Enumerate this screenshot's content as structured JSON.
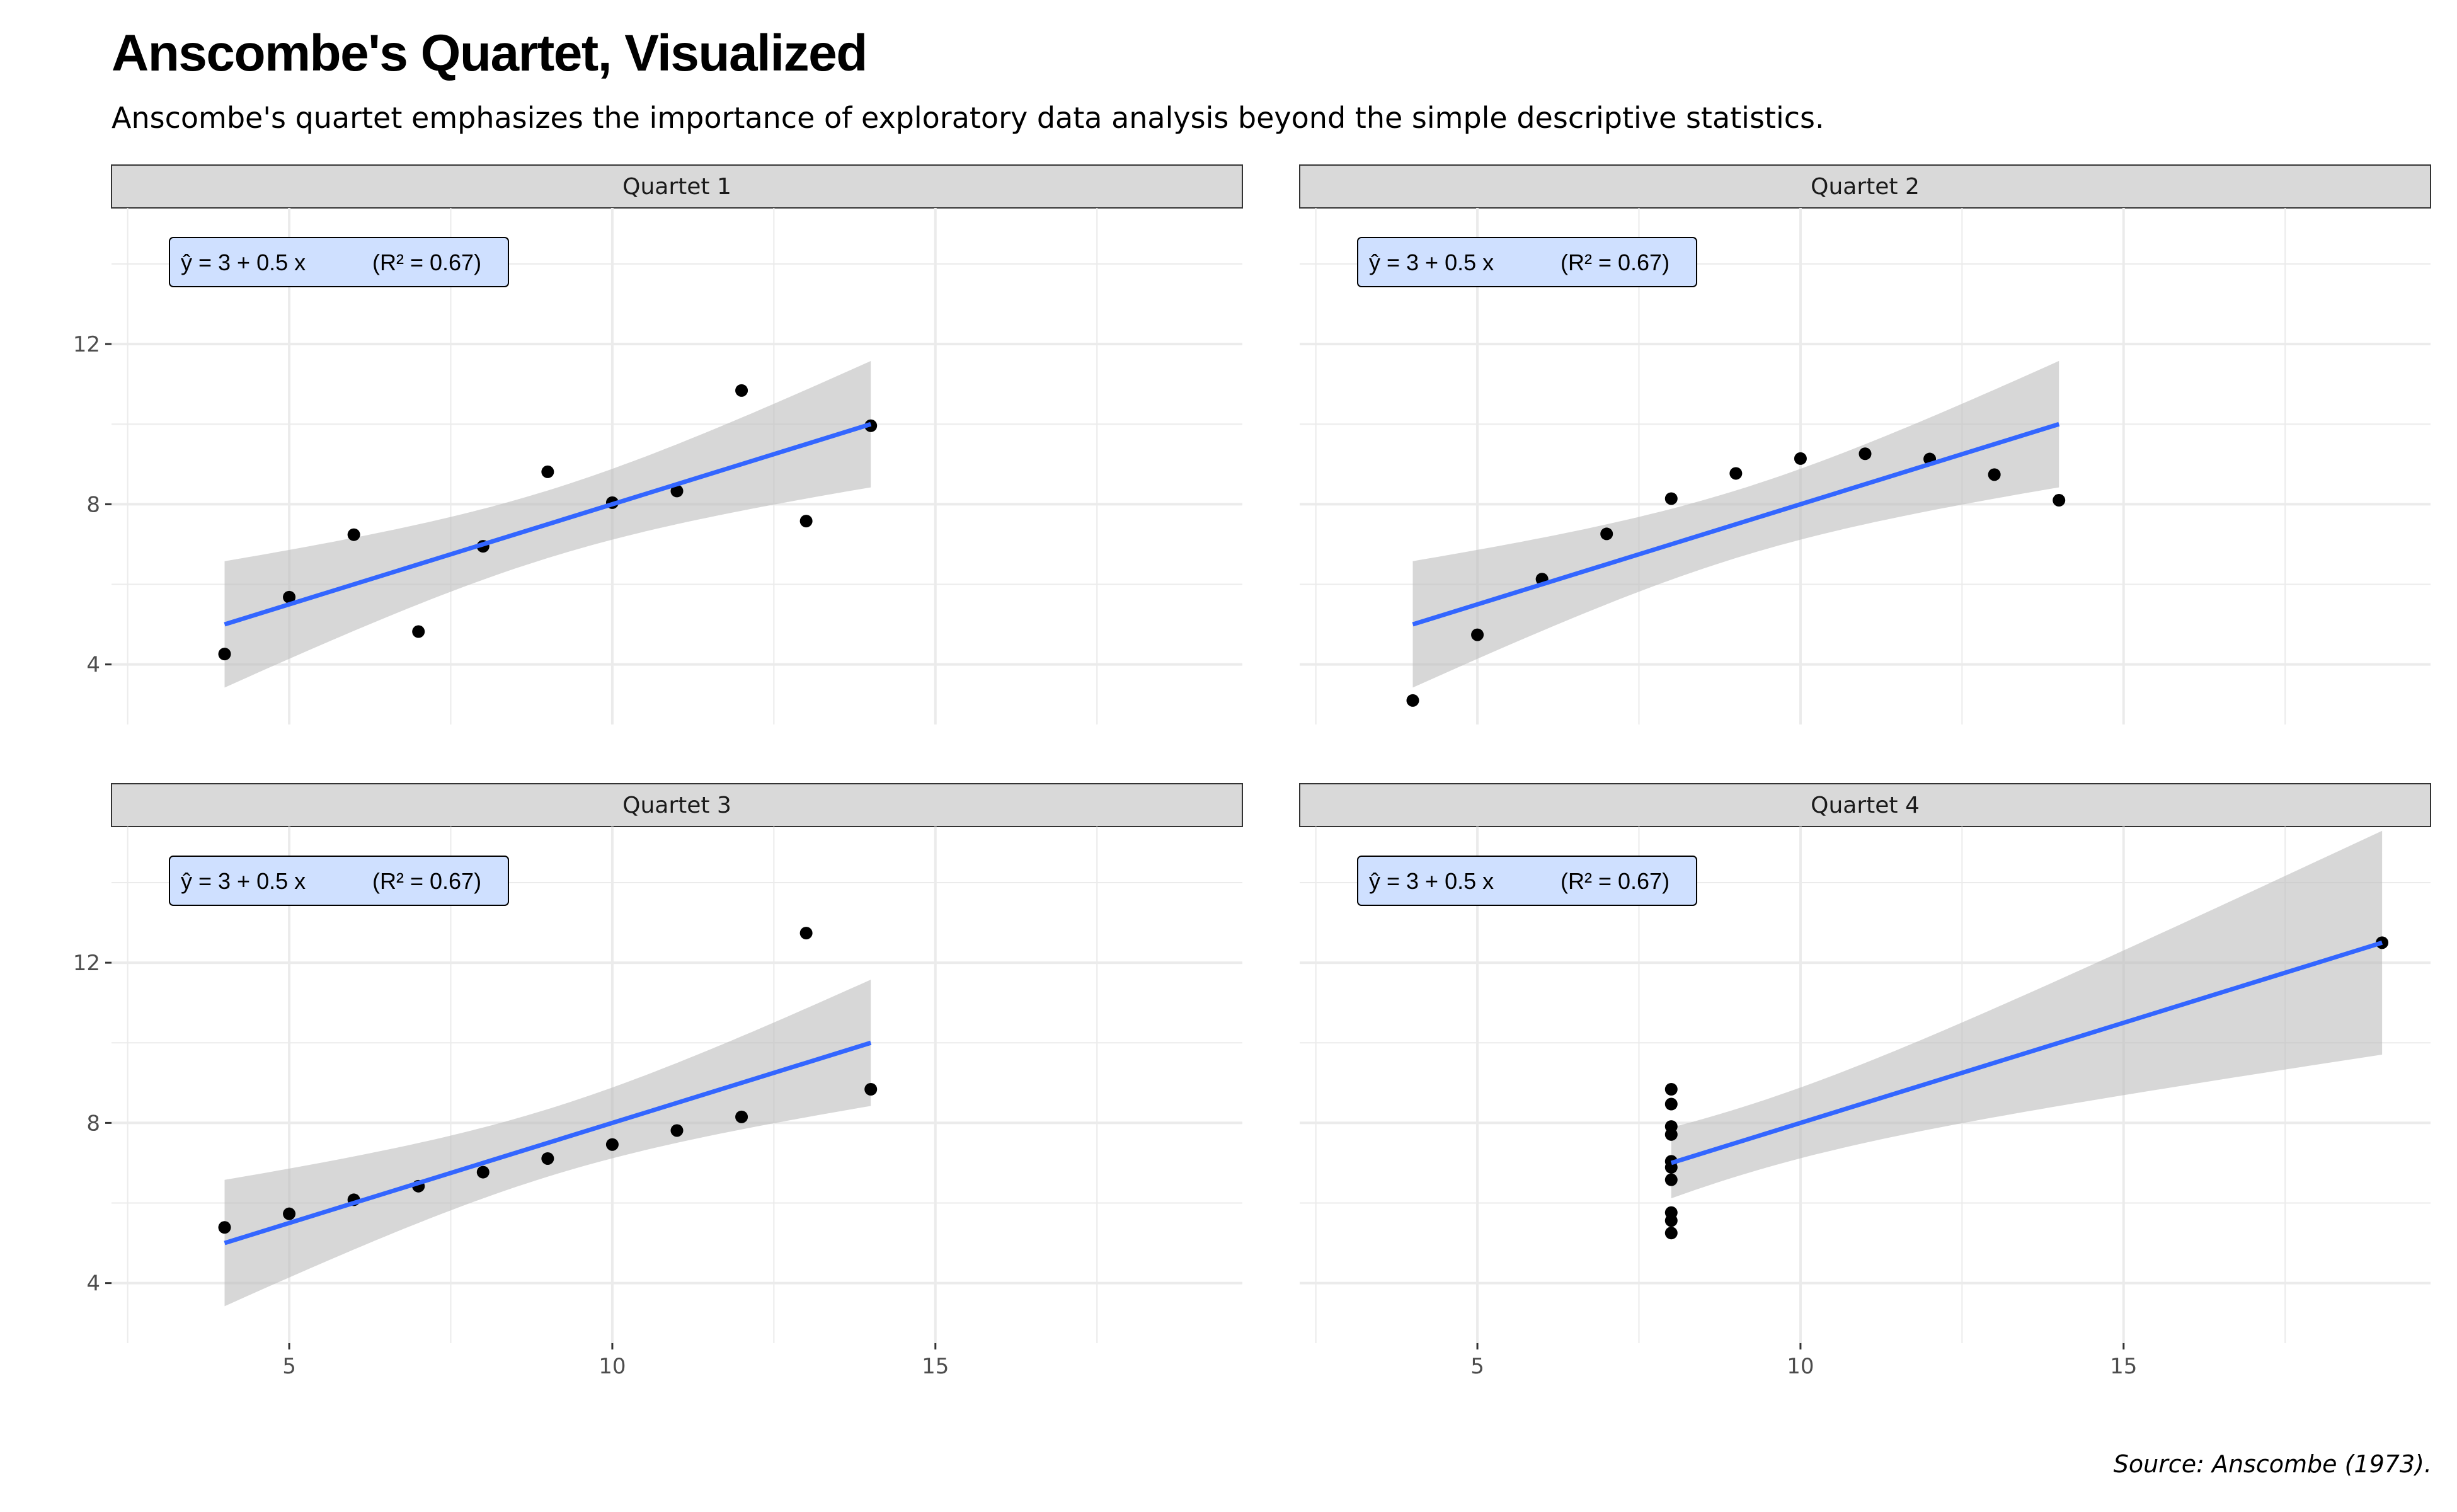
{
  "title": "Anscombe's Quartet, Visualized",
  "subtitle": "Anscombe's quartet emphasizes the importance of exploratory data analysis beyond the simple descriptive statistics.",
  "caption": "Source: Anscombe (1973).",
  "colors": {
    "background": "#ffffff",
    "grid": "#ebebeb",
    "strip_fill": "#d9d9d9",
    "strip_border": "#333333",
    "point": "#000000",
    "fit_line": "#3366ff",
    "confidence_band": "#bebebe",
    "label_fill": "#cfe0ff",
    "label_border": "#000000"
  },
  "chart_data": {
    "type": "scatter",
    "facets": "2x2",
    "x_ticks": [
      5,
      10,
      15
    ],
    "y_ticks": [
      4,
      8,
      12
    ],
    "xlim": [
      2.25,
      19.75
    ],
    "ylim": [
      2.5,
      15.4
    ],
    "grid": true,
    "shared_axes": true,
    "fit": "linear regression with confidence band",
    "panels": [
      {
        "name": "Quartet 1",
        "annotation": {
          "equation": "ŷ = 3 + 0.5 x",
          "r2": "(R² = 0.67)"
        },
        "x": [
          10,
          8,
          13,
          9,
          11,
          14,
          6,
          4,
          12,
          7,
          5
        ],
        "y": [
          8.04,
          6.95,
          7.58,
          8.81,
          8.33,
          9.96,
          7.24,
          4.26,
          10.84,
          4.82,
          5.68
        ],
        "fit": {
          "intercept": 3.0,
          "slope": 0.5,
          "x_range": [
            4,
            14
          ]
        }
      },
      {
        "name": "Quartet 2",
        "annotation": {
          "equation": "ŷ = 3 + 0.5 x",
          "r2": "(R² = 0.67)"
        },
        "x": [
          10,
          8,
          13,
          9,
          11,
          14,
          6,
          4,
          12,
          7,
          5
        ],
        "y": [
          9.14,
          8.14,
          8.74,
          8.77,
          9.26,
          8.1,
          6.13,
          3.1,
          9.13,
          7.26,
          4.74
        ],
        "fit": {
          "intercept": 3.0,
          "slope": 0.5,
          "x_range": [
            4,
            14
          ]
        }
      },
      {
        "name": "Quartet 3",
        "annotation": {
          "equation": "ŷ = 3 + 0.5 x",
          "r2": "(R² = 0.67)"
        },
        "x": [
          10,
          8,
          13,
          9,
          11,
          14,
          6,
          4,
          12,
          7,
          5
        ],
        "y": [
          7.46,
          6.77,
          12.74,
          7.11,
          7.81,
          8.84,
          6.08,
          5.39,
          8.15,
          6.42,
          5.73
        ],
        "fit": {
          "intercept": 3.0,
          "slope": 0.5,
          "x_range": [
            4,
            14
          ]
        }
      },
      {
        "name": "Quartet 4",
        "annotation": {
          "equation": "ŷ = 3 + 0.5 x",
          "r2": "(R² = 0.67)"
        },
        "x": [
          8,
          8,
          8,
          8,
          8,
          8,
          8,
          19,
          8,
          8,
          8
        ],
        "y": [
          6.58,
          5.76,
          7.71,
          8.84,
          8.47,
          7.04,
          5.25,
          12.5,
          5.56,
          7.91,
          6.89
        ],
        "fit": {
          "intercept": 3.0,
          "slope": 0.5,
          "x_range": [
            8,
            19
          ]
        }
      }
    ]
  }
}
